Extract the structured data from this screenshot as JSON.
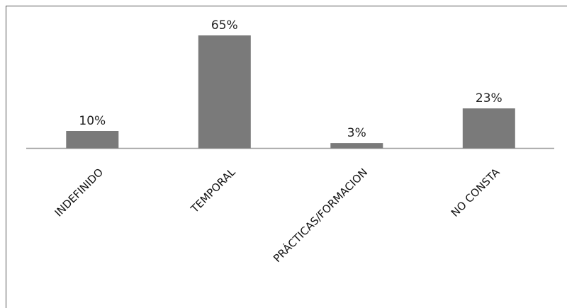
{
  "chart_data": {
    "type": "bar",
    "categories": [
      "INDEFINIDO",
      "TEMPORAL",
      "PRÁCTICAS/FORMACION",
      "NO CONSTA"
    ],
    "values": [
      10,
      65,
      3,
      23
    ],
    "data_labels": [
      "10%",
      "65%",
      "3%",
      "23%"
    ],
    "title": "",
    "xlabel": "",
    "ylabel": "",
    "ylim": [
      0,
      65
    ],
    "grid": false,
    "legend": "none",
    "bar_color": "#7a7a7a",
    "axis_color": "#a0a0a0",
    "frame_color": "#555555"
  }
}
